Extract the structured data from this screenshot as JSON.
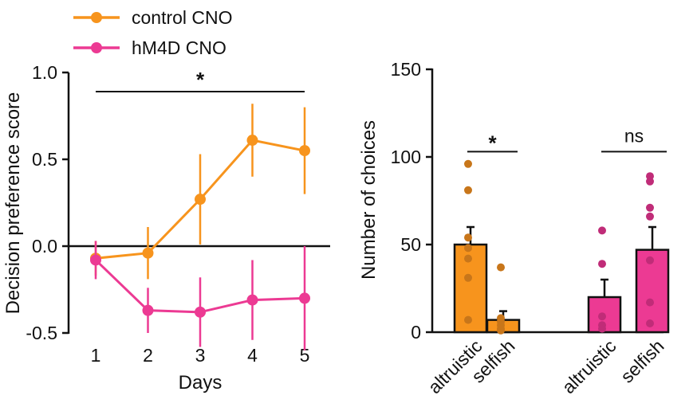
{
  "colors": {
    "control": "#F7941D",
    "hm4d": "#EC3A93",
    "control_dot": "#C8761A",
    "hm4d_dot": "#C02C78",
    "axis": "#111111"
  },
  "legend": {
    "items": [
      {
        "label": "control CNO",
        "color": "#F7941D"
      },
      {
        "label": "hM4D CNO",
        "color": "#EC3A93"
      }
    ]
  },
  "chart_data": [
    {
      "type": "line",
      "xlabel": "Days",
      "ylabel": "Decision preference score",
      "x": [
        1,
        2,
        3,
        4,
        5
      ],
      "xlim": [
        1,
        5
      ],
      "ylim": [
        -0.5,
        1.0
      ],
      "yticks": [
        "-0.5",
        "0.0",
        "0.5",
        "1.0"
      ],
      "xticks": [
        "1",
        "2",
        "3",
        "4",
        "5"
      ],
      "series": [
        {
          "name": "control CNO",
          "color": "#F7941D",
          "values": [
            -0.07,
            -0.04,
            0.27,
            0.61,
            0.55
          ],
          "error": [
            0.1,
            0.15,
            0.26,
            0.21,
            0.25
          ]
        },
        {
          "name": "hM4D CNO",
          "color": "#EC3A93",
          "values": [
            -0.08,
            -0.37,
            -0.38,
            -0.31,
            -0.3
          ],
          "error": [
            0.11,
            0.13,
            0.2,
            0.23,
            0.3
          ]
        }
      ],
      "annotations": [
        {
          "text": "*",
          "x_from": 1,
          "x_to": 5,
          "y": 0.89
        }
      ]
    },
    {
      "type": "bar",
      "ylabel": "Number of choices",
      "ylim": [
        0,
        150
      ],
      "yticks": [
        "0",
        "50",
        "100",
        "150"
      ],
      "categories": [
        "altruistic",
        "selfish",
        "altruistic",
        "selfish"
      ],
      "bars": [
        {
          "label": "altruistic",
          "group": "control CNO",
          "value": 50,
          "error": 10,
          "color": "#F7941D",
          "points": [
            96,
            81,
            54,
            48,
            42,
            31,
            7
          ]
        },
        {
          "label": "selfish",
          "group": "control CNO",
          "value": 7,
          "error": 5,
          "color": "#F7941D",
          "points": [
            37,
            8,
            6,
            4,
            2,
            1
          ]
        },
        {
          "label": "altruistic",
          "group": "hM4D CNO",
          "value": 20,
          "error": 10,
          "color": "#EC3A93",
          "points": [
            58,
            39,
            9,
            4,
            2
          ]
        },
        {
          "label": "selfish",
          "group": "hM4D CNO",
          "value": 47,
          "error": 13,
          "color": "#EC3A93",
          "points": [
            89,
            86,
            71,
            66,
            41,
            17,
            5
          ]
        }
      ],
      "annotations": [
        {
          "text": "*",
          "between": [
            0,
            1
          ],
          "y": 103
        },
        {
          "text": "ns",
          "between": [
            2,
            3
          ],
          "y": 103
        }
      ]
    }
  ]
}
